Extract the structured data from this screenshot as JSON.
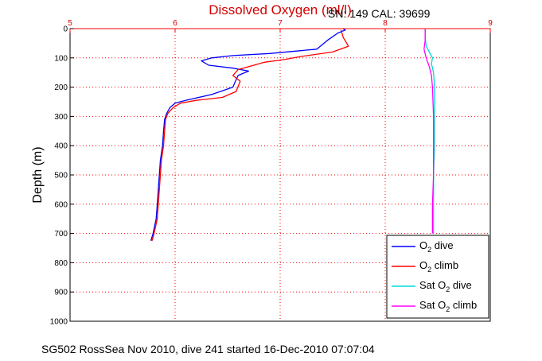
{
  "chart_data": {
    "type": "line",
    "title": "Dissolved Oxygen (ml/l)",
    "annotation": "SN: 149  CAL: 39699",
    "ylabel": "Depth (m)",
    "caption": "SG502 RossSea Nov 2010, dive 241 started 16-Dec-2010 07:07:04",
    "xlim": [
      5,
      9
    ],
    "ylim": [
      0,
      1000
    ],
    "y_reversed": true,
    "x_axis_position": "top",
    "xticks": [
      5,
      6,
      7,
      8,
      9
    ],
    "yticks": [
      0,
      100,
      200,
      300,
      400,
      500,
      600,
      700,
      800,
      900,
      1000
    ],
    "grid": true,
    "grid_color": "#ff0000",
    "legend_position": "bottom-right",
    "series": [
      {
        "name_main": "O",
        "name_sub": "2",
        "name_rest": " dive",
        "color": "#0000ff",
        "points": [
          [
            7.6,
            0
          ],
          [
            7.62,
            5
          ],
          [
            7.55,
            15
          ],
          [
            7.45,
            40
          ],
          [
            7.35,
            70
          ],
          [
            6.9,
            85
          ],
          [
            6.55,
            92
          ],
          [
            6.35,
            100
          ],
          [
            6.25,
            110
          ],
          [
            6.32,
            125
          ],
          [
            6.55,
            135
          ],
          [
            6.7,
            145
          ],
          [
            6.6,
            160
          ],
          [
            6.58,
            175
          ],
          [
            6.55,
            200
          ],
          [
            6.35,
            225
          ],
          [
            6.1,
            245
          ],
          [
            6.0,
            255
          ],
          [
            5.95,
            270
          ],
          [
            5.92,
            290
          ],
          [
            5.9,
            310
          ],
          [
            5.89,
            350
          ],
          [
            5.88,
            400
          ],
          [
            5.86,
            450
          ],
          [
            5.85,
            500
          ],
          [
            5.84,
            550
          ],
          [
            5.83,
            600
          ],
          [
            5.82,
            650
          ],
          [
            5.79,
            700
          ],
          [
            5.77,
            725
          ]
        ]
      },
      {
        "name_main": "O",
        "name_sub": "2",
        "name_rest": " climb",
        "color": "#ff0000",
        "points": [
          [
            7.58,
            5
          ],
          [
            7.6,
            30
          ],
          [
            7.65,
            60
          ],
          [
            7.5,
            80
          ],
          [
            7.2,
            95
          ],
          [
            7.05,
            105
          ],
          [
            6.85,
            115
          ],
          [
            6.75,
            125
          ],
          [
            6.6,
            140
          ],
          [
            6.55,
            160
          ],
          [
            6.62,
            180
          ],
          [
            6.58,
            215
          ],
          [
            6.45,
            235
          ],
          [
            6.2,
            245
          ],
          [
            6.05,
            255
          ],
          [
            5.98,
            270
          ],
          [
            5.93,
            290
          ],
          [
            5.91,
            310
          ],
          [
            5.9,
            350
          ],
          [
            5.89,
            400
          ],
          [
            5.87,
            450
          ],
          [
            5.86,
            500
          ],
          [
            5.85,
            550
          ],
          [
            5.84,
            600
          ],
          [
            5.83,
            650
          ],
          [
            5.8,
            700
          ],
          [
            5.78,
            725
          ]
        ]
      },
      {
        "name_main": "Sat O",
        "name_sub": "2",
        "name_rest": " dive",
        "color": "#00d8d8",
        "points": [
          [
            8.38,
            0
          ],
          [
            8.38,
            30
          ],
          [
            8.39,
            60
          ],
          [
            8.42,
            80
          ],
          [
            8.45,
            100
          ],
          [
            8.44,
            120
          ],
          [
            8.46,
            150
          ],
          [
            8.47,
            200
          ],
          [
            8.47,
            300
          ],
          [
            8.47,
            400
          ],
          [
            8.46,
            500
          ],
          [
            8.46,
            600
          ],
          [
            8.46,
            700
          ]
        ]
      },
      {
        "name_main": "Sat O",
        "name_sub": "2",
        "name_rest": " climb",
        "color": "#ff00ff",
        "points": [
          [
            8.38,
            0
          ],
          [
            8.38,
            40
          ],
          [
            8.37,
            70
          ],
          [
            8.39,
            100
          ],
          [
            8.42,
            130
          ],
          [
            8.44,
            160
          ],
          [
            8.45,
            200
          ],
          [
            8.46,
            300
          ],
          [
            8.46,
            400
          ],
          [
            8.46,
            500
          ],
          [
            8.45,
            600
          ],
          [
            8.45,
            700
          ]
        ]
      }
    ]
  }
}
